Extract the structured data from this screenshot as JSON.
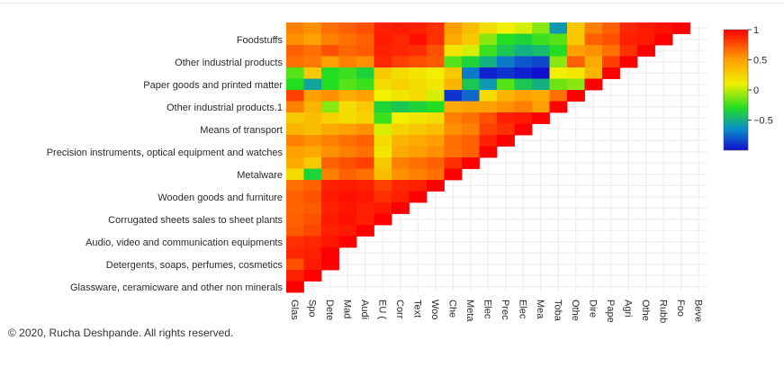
{
  "chart_data": {
    "type": "heatmap",
    "title": "",
    "xlabel": "",
    "ylabel": "",
    "colorscale": [
      [
        0.0,
        "#1010d0"
      ],
      [
        0.18,
        "#0a90c8"
      ],
      [
        0.35,
        "#22dd22"
      ],
      [
        0.55,
        "#f0f000"
      ],
      [
        0.75,
        "#ffa000"
      ],
      [
        1.0,
        "#ff0000"
      ]
    ],
    "zrange": [
      -1,
      1
    ],
    "colorbar_ticks": [
      "1",
      "0.5",
      "0",
      "−0.5"
    ],
    "colorbar_tick_values": [
      1,
      0.5,
      0,
      -0.5
    ],
    "x_labels": [
      "Glas",
      "Spo",
      "Dete",
      "Mad",
      "Audi",
      "EU (",
      "Corr",
      "Text",
      "Woo",
      "Che",
      "Meta",
      "Elec",
      "Prec",
      "Elec",
      "Mea",
      "Toba",
      "Othe",
      "Dire",
      "Pape",
      "Agri",
      "Othe",
      "Rubb",
      "Foo",
      "Beve"
    ],
    "y_tick_labels": [
      {
        "row": 1,
        "text": "Foodstuffs"
      },
      {
        "row": 3,
        "text": "Other industrial products"
      },
      {
        "row": 5,
        "text": "Paper goods and printed matter"
      },
      {
        "row": 7,
        "text": "Other industrial products.1"
      },
      {
        "row": 9,
        "text": "Means of transport"
      },
      {
        "row": 11,
        "text": "Precision instruments, optical equipment and watches"
      },
      {
        "row": 13,
        "text": "Metalware"
      },
      {
        "row": 15,
        "text": "Wooden goods and furniture"
      },
      {
        "row": 17,
        "text": "Corrugated sheets sales to sheet plants"
      },
      {
        "row": 19,
        "text": "Audio, video and communication equipments"
      },
      {
        "row": 21,
        "text": "Detergents, soaps, perfumes, cosmetics"
      },
      {
        "row": 23,
        "text": "Glassware, ceramicware and other non minerals"
      }
    ],
    "z": [
      [
        0.6,
        0.55,
        0.65,
        0.7,
        0.75,
        0.9,
        0.92,
        0.9,
        0.85,
        0.5,
        0.35,
        0.2,
        0.1,
        0.05,
        -0.1,
        -0.6,
        0.3,
        0.6,
        0.7,
        0.88,
        0.92,
        0.95,
        1,
        null
      ],
      [
        0.55,
        0.5,
        0.6,
        0.65,
        0.7,
        0.92,
        0.88,
        0.95,
        0.85,
        0.45,
        0.3,
        -0.1,
        -0.3,
        -0.35,
        -0.25,
        -0.2,
        0.3,
        0.7,
        0.75,
        0.9,
        0.92,
        1,
        null,
        null
      ],
      [
        0.7,
        0.65,
        0.75,
        0.68,
        0.72,
        0.9,
        0.88,
        0.86,
        0.75,
        0.15,
        0.05,
        -0.25,
        -0.4,
        -0.5,
        -0.45,
        -0.3,
        0.5,
        0.55,
        0.65,
        0.85,
        1,
        null,
        null,
        null
      ],
      [
        0.65,
        0.62,
        0.5,
        0.6,
        0.55,
        0.88,
        0.8,
        0.75,
        0.72,
        -0.2,
        -0.35,
        -0.5,
        -0.7,
        -0.8,
        -0.85,
        -0.1,
        0.7,
        0.45,
        0.8,
        1,
        null,
        null,
        null,
        null
      ],
      [
        -0.2,
        0.3,
        -0.3,
        -0.25,
        -0.35,
        0.3,
        0.2,
        0.15,
        0.1,
        0.3,
        -0.7,
        -0.95,
        -0.9,
        -0.95,
        -1,
        0.1,
        0.15,
        0.4,
        1,
        null,
        null,
        null,
        null,
        null
      ],
      [
        -0.3,
        -0.55,
        -0.3,
        -0.2,
        -0.25,
        0.2,
        0.25,
        0.2,
        0.15,
        0.4,
        -0.4,
        -0.6,
        -0.2,
        -0.4,
        -0.5,
        -0.15,
        -0.1,
        1,
        null,
        null,
        null,
        null,
        null,
        null
      ],
      [
        0.8,
        0.5,
        0.55,
        0.45,
        0.5,
        0.1,
        0.15,
        0.2,
        0.05,
        -0.9,
        -0.75,
        0.2,
        0.4,
        0.5,
        0.45,
        0.65,
        1,
        null,
        null,
        null,
        null,
        null,
        null,
        null
      ],
      [
        0.6,
        0.4,
        -0.1,
        0.2,
        0.3,
        -0.35,
        -0.4,
        -0.35,
        -0.3,
        0.45,
        0.5,
        0.5,
        0.55,
        0.6,
        0.5,
        1,
        null,
        null,
        null,
        null,
        null,
        null,
        null,
        null
      ],
      [
        0.3,
        0.35,
        0.25,
        0.2,
        0.25,
        -0.25,
        0.1,
        0.15,
        0.2,
        0.6,
        0.65,
        0.75,
        0.9,
        0.92,
        1,
        null,
        null,
        null,
        null,
        null,
        null,
        null,
        null,
        null
      ],
      [
        0.4,
        0.35,
        0.45,
        0.5,
        0.55,
        0.05,
        0.25,
        0.3,
        0.35,
        0.55,
        0.6,
        0.8,
        0.85,
        1,
        null,
        null,
        null,
        null,
        null,
        null,
        null,
        null,
        null,
        null
      ],
      [
        0.6,
        0.55,
        0.6,
        0.65,
        0.7,
        0.2,
        0.4,
        0.45,
        0.5,
        0.65,
        0.7,
        0.9,
        1,
        null,
        null,
        null,
        null,
        null,
        null,
        null,
        null,
        null,
        null,
        null
      ],
      [
        0.5,
        0.45,
        0.55,
        0.6,
        0.65,
        0.15,
        0.45,
        0.5,
        0.55,
        0.65,
        0.7,
        1,
        null,
        null,
        null,
        null,
        null,
        null,
        null,
        null,
        null,
        null,
        null,
        null
      ],
      [
        0.45,
        0.3,
        0.7,
        0.75,
        0.8,
        0.3,
        0.6,
        0.65,
        0.7,
        0.85,
        1,
        null,
        null,
        null,
        null,
        null,
        null,
        null,
        null,
        null,
        null,
        null,
        null,
        null
      ],
      [
        0.2,
        -0.35,
        0.6,
        0.7,
        0.65,
        0.35,
        0.55,
        0.6,
        0.65,
        1,
        null,
        null,
        null,
        null,
        null,
        null,
        null,
        null,
        null,
        null,
        null,
        null,
        null,
        null
      ],
      [
        0.65,
        0.7,
        0.9,
        0.92,
        0.9,
        0.8,
        0.88,
        0.9,
        1,
        null,
        null,
        null,
        null,
        null,
        null,
        null,
        null,
        null,
        null,
        null,
        null,
        null,
        null,
        null
      ],
      [
        0.7,
        0.75,
        0.92,
        0.95,
        0.93,
        0.85,
        0.9,
        1,
        null,
        null,
        null,
        null,
        null,
        null,
        null,
        null,
        null,
        null,
        null,
        null,
        null,
        null,
        null,
        null
      ],
      [
        0.68,
        0.72,
        0.9,
        0.93,
        0.9,
        0.92,
        1,
        null,
        null,
        null,
        null,
        null,
        null,
        null,
        null,
        null,
        null,
        null,
        null,
        null,
        null,
        null,
        null,
        null
      ],
      [
        0.7,
        0.75,
        0.92,
        0.95,
        0.9,
        1,
        null,
        null,
        null,
        null,
        null,
        null,
        null,
        null,
        null,
        null,
        null,
        null,
        null,
        null,
        null,
        null,
        null,
        null
      ],
      [
        0.72,
        0.78,
        0.9,
        0.92,
        1,
        null,
        null,
        null,
        null,
        null,
        null,
        null,
        null,
        null,
        null,
        null,
        null,
        null,
        null,
        null,
        null,
        null,
        null,
        null
      ],
      [
        0.85,
        0.88,
        0.93,
        1,
        null,
        null,
        null,
        null,
        null,
        null,
        null,
        null,
        null,
        null,
        null,
        null,
        null,
        null,
        null,
        null,
        null,
        null,
        null,
        null
      ],
      [
        0.88,
        0.9,
        1,
        null,
        null,
        null,
        null,
        null,
        null,
        null,
        null,
        null,
        null,
        null,
        null,
        null,
        null,
        null,
        null,
        null,
        null,
        null,
        null,
        null
      ],
      [
        0.75,
        0.92,
        1,
        null,
        null,
        null,
        null,
        null,
        null,
        null,
        null,
        null,
        null,
        null,
        null,
        null,
        null,
        null,
        null,
        null,
        null,
        null,
        null,
        null
      ],
      [
        0.9,
        1,
        null,
        null,
        null,
        null,
        null,
        null,
        null,
        null,
        null,
        null,
        null,
        null,
        null,
        null,
        null,
        null,
        null,
        null,
        null,
        null,
        null,
        null
      ],
      [
        1,
        null,
        null,
        null,
        null,
        null,
        null,
        null,
        null,
        null,
        null,
        null,
        null,
        null,
        null,
        null,
        null,
        null,
        null,
        null,
        null,
        null,
        null,
        null
      ]
    ]
  },
  "footer": {
    "copyright": "© 2020, Rucha Deshpande. All rights reserved."
  }
}
